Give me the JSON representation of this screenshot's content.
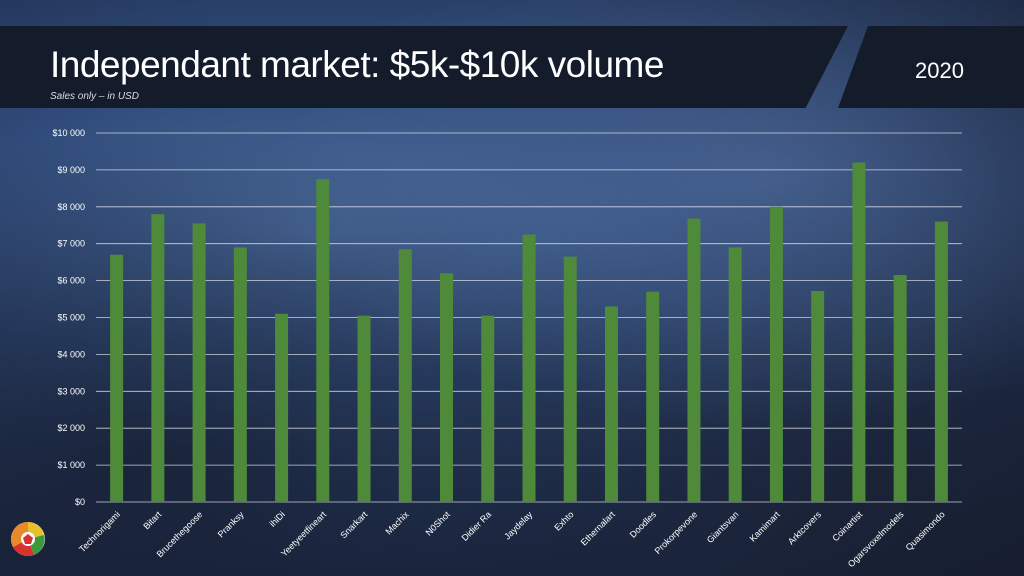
{
  "header": {
    "title": "Independant market: $5k-$10k volume",
    "subtitle": "Sales only – in USD",
    "year": "2020"
  },
  "colors": {
    "bar": "#4f8a3a",
    "gridline": "#e8ecf2",
    "text": "#ffffff",
    "header_bg": "#141c2c"
  },
  "chart_data": {
    "type": "bar",
    "categories": [
      "Technorigami",
      "Bitart",
      "Brucethegoose",
      "Pranksy",
      "ihiDi",
      "Yeetyeetfineart",
      "Snarkart",
      "Machix",
      "N0Shot",
      "Didier Ra",
      "Jaydelay",
      "Exhto",
      "Ethernalart",
      "Doodles",
      "Prokorpevone",
      "Giantsvan",
      "Kamimart",
      "Arktcovers",
      "Coinartist",
      "Ogarsvoxelmodels",
      "Quasimondo"
    ],
    "values": [
      6700,
      7800,
      7550,
      6900,
      5100,
      8750,
      5050,
      6850,
      6200,
      5050,
      7250,
      6650,
      5300,
      5700,
      7680,
      6900,
      8000,
      5720,
      9200,
      6150,
      7600
    ],
    "ylim": [
      0,
      10000
    ],
    "y_ticks": [
      "$0",
      "$1 000",
      "$2 000",
      "$3 000",
      "$4 000",
      "$5 000",
      "$6 000",
      "$7 000",
      "$8 000",
      "$9 000",
      "$10 000"
    ],
    "grid": true,
    "legend": "none"
  }
}
